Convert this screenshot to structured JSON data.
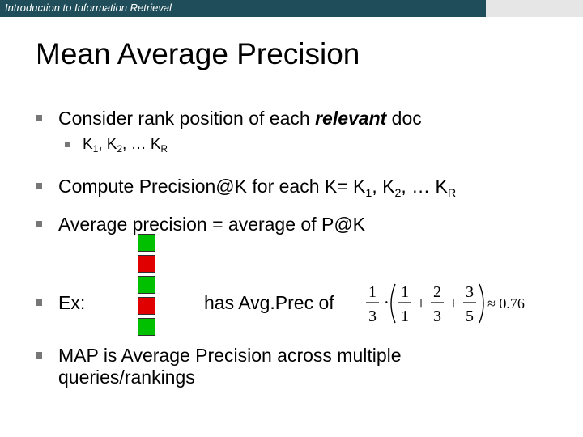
{
  "header": {
    "course_title": "Introduction to Information Retrieval"
  },
  "slide": {
    "title": "Mean Average Precision",
    "bullet1": {
      "before": "Consider rank position of each ",
      "emph": "relevant",
      "after": " doc"
    },
    "sub1": {
      "k": "K",
      "sub1": "1",
      "sep1": ", K",
      "sub2": "2",
      "sep2": ", … K",
      "subR": "R"
    },
    "bullet2": {
      "text": "Compute Precision@K for each K= K",
      "sub1": "1",
      "sep1": ", K",
      "sub2": "2",
      "sep2": ", … K",
      "subR": "R"
    },
    "bullet3": "Average precision = average of P@K",
    "bullet4_ex": "Ex:",
    "bullet4_tail": "has Avg.Prec of",
    "bullet5_line1": "MAP is Average Precision across multiple",
    "bullet5_line2": "queries/rankings"
  },
  "ranking": [
    {
      "relevant": true
    },
    {
      "relevant": false
    },
    {
      "relevant": true
    },
    {
      "relevant": false
    },
    {
      "relevant": true
    }
  ],
  "colors": {
    "relevant": "#00c000",
    "nonrelevant": "#e00000",
    "header": "#1f4e5a"
  },
  "formula": {
    "lead_num": "1",
    "lead_den": "3",
    "dot": "·",
    "f1_num": "1",
    "f1_den": "1",
    "plus1": "+",
    "f2_num": "2",
    "f2_den": "3",
    "plus2": "+",
    "f3_num": "3",
    "f3_den": "5",
    "approx": "≈ 0.76"
  }
}
